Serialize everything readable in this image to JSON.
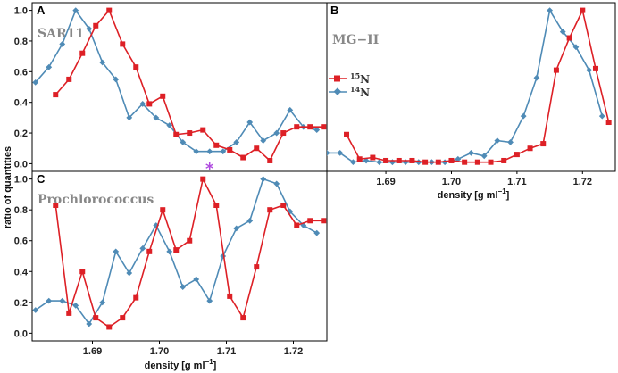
{
  "figure": {
    "ylabel": "ratio of quantities",
    "xlabel": "density [g ml",
    "xlabel_sup": "−1",
    "xlabel_end": "]",
    "annotation_symbol": "*"
  },
  "legend": {
    "n15_label": "N",
    "n15_sup": "15",
    "n14_label": "N",
    "n14_sup": "14",
    "colors": {
      "n15": "#dd2026",
      "n14": "#4f8bb6"
    }
  },
  "chart_data": [
    {
      "type": "line",
      "panel": "A",
      "title": "SAR11",
      "xlim": [
        1.681,
        1.725
      ],
      "ylim": [
        -0.05,
        1.05
      ],
      "yticks": [
        "0.0",
        "0.2",
        "0.4",
        "0.6",
        "0.8",
        "1.0"
      ],
      "xticks": [],
      "series": [
        {
          "name": "15N",
          "x": [
            1.6845,
            1.6865,
            1.6885,
            1.6905,
            1.6925,
            1.6945,
            1.6965,
            1.6985,
            1.7005,
            1.7025,
            1.7045,
            1.7065,
            1.7085,
            1.7105,
            1.7125,
            1.7145,
            1.7165,
            1.7185,
            1.7205,
            1.7225,
            1.7245
          ],
          "y": [
            0.45,
            0.55,
            0.72,
            0.9,
            1.0,
            0.78,
            0.63,
            0.39,
            0.44,
            0.19,
            0.2,
            0.22,
            0.12,
            0.09,
            0.04,
            0.1,
            0.02,
            0.2,
            0.24,
            0.24,
            0.24
          ]
        },
        {
          "name": "14N",
          "x": [
            1.6815,
            1.6835,
            1.6855,
            1.6875,
            1.6895,
            1.6915,
            1.6935,
            1.6955,
            1.6975,
            1.6995,
            1.7015,
            1.7035,
            1.7055,
            1.7075,
            1.7095,
            1.7115,
            1.7135,
            1.7155,
            1.7175,
            1.7195,
            1.7215,
            1.7235
          ],
          "y": [
            0.53,
            0.63,
            0.78,
            1.0,
            0.88,
            0.66,
            0.55,
            0.3,
            0.39,
            0.3,
            0.25,
            0.14,
            0.08,
            0.08,
            0.08,
            0.14,
            0.27,
            0.15,
            0.2,
            0.35,
            0.24,
            0.22
          ]
        }
      ]
    },
    {
      "type": "line",
      "panel": "B",
      "title": "MG−II",
      "xlim": [
        1.681,
        1.725
      ],
      "ylim": [
        -0.05,
        1.05
      ],
      "yticks": [],
      "xticks": [
        "1.69",
        "1.70",
        "1.71",
        "1.72"
      ],
      "series": [
        {
          "name": "15N",
          "x": [
            1.684,
            1.686,
            1.688,
            1.69,
            1.692,
            1.694,
            1.696,
            1.698,
            1.7,
            1.702,
            1.704,
            1.706,
            1.708,
            1.71,
            1.712,
            1.714,
            1.716,
            1.718,
            1.72,
            1.722,
            1.724
          ],
          "y": [
            0.19,
            0.03,
            0.04,
            0.02,
            0.02,
            0.02,
            0.01,
            0.01,
            0.02,
            0.01,
            0.01,
            0.01,
            0.02,
            0.06,
            0.1,
            0.13,
            0.61,
            0.82,
            1.0,
            0.62,
            0.27
          ]
        },
        {
          "name": "14N",
          "x": [
            1.681,
            1.683,
            1.685,
            1.687,
            1.689,
            1.691,
            1.693,
            1.695,
            1.697,
            1.699,
            1.701,
            1.703,
            1.705,
            1.707,
            1.709,
            1.711,
            1.713,
            1.715,
            1.717,
            1.719,
            1.721,
            1.723
          ],
          "y": [
            0.07,
            0.07,
            0.01,
            0.02,
            0.01,
            0.01,
            0.01,
            0.01,
            0.01,
            0.01,
            0.03,
            0.07,
            0.05,
            0.15,
            0.14,
            0.31,
            0.56,
            1.0,
            0.86,
            0.76,
            0.61,
            0.31
          ]
        }
      ]
    },
    {
      "type": "line",
      "panel": "C",
      "title": "Prochlorococcus",
      "xlim": [
        1.681,
        1.725
      ],
      "ylim": [
        -0.05,
        1.05
      ],
      "yticks": [
        "0.0",
        "0.2",
        "0.4",
        "0.6",
        "0.8",
        "1.0"
      ],
      "xticks": [
        "1.69",
        "1.70",
        "1.71",
        "1.72"
      ],
      "series": [
        {
          "name": "15N",
          "x": [
            1.6845,
            1.6865,
            1.6885,
            1.6905,
            1.6925,
            1.6945,
            1.6965,
            1.6985,
            1.7005,
            1.7025,
            1.7045,
            1.7065,
            1.7085,
            1.7105,
            1.7125,
            1.7145,
            1.7165,
            1.7185,
            1.7205,
            1.7225,
            1.7245
          ],
          "y": [
            0.83,
            0.13,
            0.4,
            0.1,
            0.04,
            0.1,
            0.23,
            0.53,
            0.8,
            0.54,
            0.6,
            1.0,
            0.83,
            0.24,
            0.1,
            0.43,
            0.8,
            0.83,
            0.7,
            0.73,
            0.73
          ]
        },
        {
          "name": "14N",
          "x": [
            1.6815,
            1.6835,
            1.6855,
            1.6875,
            1.6895,
            1.6915,
            1.6935,
            1.6955,
            1.6975,
            1.6995,
            1.7015,
            1.7035,
            1.7055,
            1.7075,
            1.7095,
            1.7115,
            1.7135,
            1.7155,
            1.7175,
            1.7195,
            1.7215,
            1.7235
          ],
          "y": [
            0.15,
            0.21,
            0.21,
            0.18,
            0.06,
            0.2,
            0.53,
            0.39,
            0.55,
            0.7,
            0.53,
            0.3,
            0.35,
            0.21,
            0.5,
            0.68,
            0.73,
            1.0,
            0.97,
            0.79,
            0.7,
            0.65
          ]
        }
      ],
      "annotation": {
        "text": "*",
        "x": 1.7075,
        "y": 1.08
      }
    }
  ]
}
